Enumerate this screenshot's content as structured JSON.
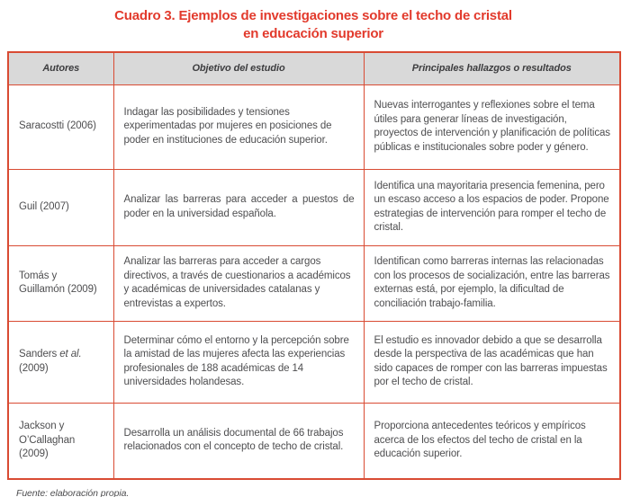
{
  "title": {
    "line1": "Cuadro 3. Ejemplos de investigaciones sobre el techo de cristal",
    "line2": "en educación superior"
  },
  "colors": {
    "accent_red": "#e23a2c",
    "border_red": "#d94b33",
    "header_bg": "#d9d9d9",
    "body_text": "#4e4e50"
  },
  "table": {
    "headers": [
      "Autores",
      "Objetivo del estudio",
      "Principales hallazgos o resultados"
    ],
    "rows": [
      {
        "author_pre": "Saracostti (2006)",
        "author_em": "",
        "author_post": "",
        "objetivo": "Indagar las posibilidades y tensiones experimentadas por mujeres en posiciones de poder en instituciones de educación superior.",
        "hallazgos": "Nuevas interrogantes y reflexiones sobre el tema útiles para generar líneas de investigación, proyectos de intervención y planificación de políticas públicas e institucionales sobre poder y género."
      },
      {
        "author_pre": "Guil (2007)",
        "author_em": "",
        "author_post": "",
        "objetivo": "Analizar las barreras para acceder a puestos de poder en la universidad española.",
        "hallazgos": "Identifica una mayoritaria presencia femenina, pero un escaso acceso a los espacios de poder. Propone estrategias de intervención para romper el techo de cristal."
      },
      {
        "author_pre": "Tomás y Guillamón (2009)",
        "author_em": "",
        "author_post": "",
        "objetivo": "Analizar las barreras para acceder a cargos directivos, a través de cuestionarios a académicos y académicas de universidades catalanas y entrevistas a expertos.",
        "hallazgos": "Identifican como barreras internas las relacionadas con los procesos de socialización, entre las barreras externas está, por ejemplo, la dificultad de conciliación trabajo-familia."
      },
      {
        "author_pre": "Sanders ",
        "author_em": "et al.",
        "author_post": " (2009)",
        "objetivo": "Determinar cómo el entorno y la percepción sobre la amistad de las mujeres afecta las experiencias profesionales de 188 académicas de 14 universidades holandesas.",
        "hallazgos": "El estudio es innovador debido a que se desarrolla desde la perspectiva de las académicas que han sido capaces de romper con las barreras impuestas por el techo de cristal."
      },
      {
        "author_pre": "Jackson y O’Callaghan (2009)",
        "author_em": "",
        "author_post": "",
        "objetivo": "Desarrolla un análisis documental de 66 trabajos relacionados con el concepto de techo de cristal.",
        "hallazgos": "Proporciona antecedentes teóricos y empíricos acerca de los efectos del techo de cristal en la educación superior."
      }
    ]
  },
  "footer": {
    "fuente": "Fuente: elaboración propia."
  }
}
